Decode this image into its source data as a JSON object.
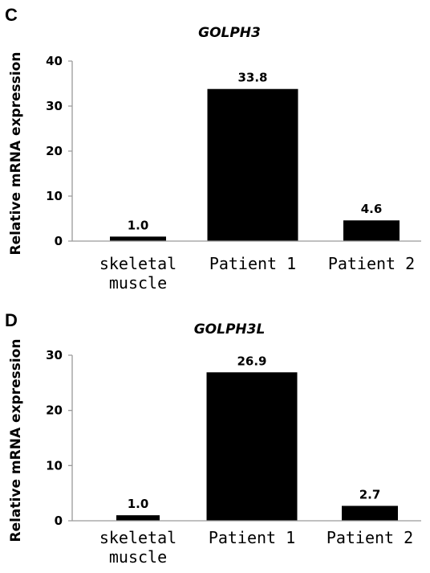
{
  "chart_data": [
    {
      "type": "bar",
      "panel": "C",
      "title": "GOLPH3",
      "ylabel": "Relative mRNA expression",
      "ylim": [
        0,
        40
      ],
      "yticks": [
        0,
        10,
        20,
        30,
        40
      ],
      "categories": [
        [
          "skeletal",
          "muscle"
        ],
        [
          "Patient 1"
        ],
        [
          "Patient 2"
        ]
      ],
      "values": [
        1.0,
        33.8,
        4.6
      ],
      "data_labels": [
        "1.0",
        "33.8",
        "4.6"
      ]
    },
    {
      "type": "bar",
      "panel": "D",
      "title": "GOLPH3L",
      "ylabel": "Relative mRNA expression",
      "ylim": [
        0,
        30
      ],
      "yticks": [
        0,
        10,
        20,
        30
      ],
      "categories": [
        [
          "skeletal",
          "muscle"
        ],
        [
          "Patient 1"
        ],
        [
          "Patient 2"
        ]
      ],
      "values": [
        1.0,
        26.9,
        2.7
      ],
      "data_labels": [
        "1.0",
        "26.9",
        "2.7"
      ]
    }
  ]
}
